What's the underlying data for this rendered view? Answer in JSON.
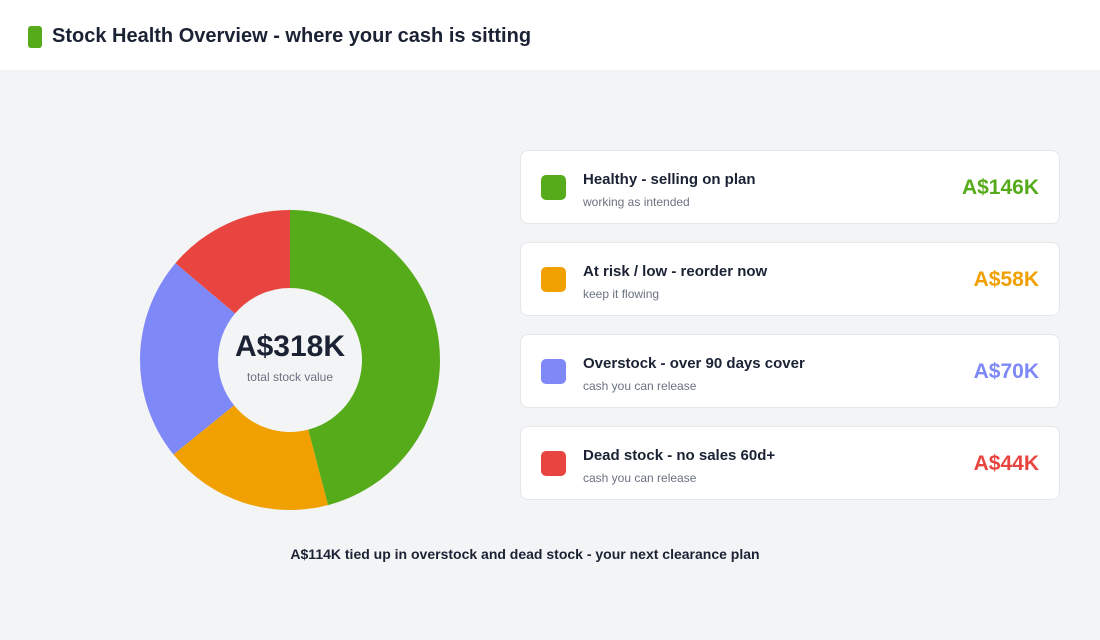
{
  "chart_data": {
    "type": "donut",
    "title": "Stock Health Overview - where your cash is sitting",
    "categories": [
      "Healthy - selling on plan",
      "At risk / low - reorder now",
      "Overstock - over 90 days cover",
      "Dead stock - no sales 60d+"
    ],
    "descriptions": [
      "working as intended",
      "keep it flowing",
      "cash you can release",
      "cash you can release"
    ],
    "values": [
      146000,
      58000,
      70000,
      44000
    ],
    "value_labels": [
      "A$146K",
      "A$58K",
      "A$70K",
      "A$44K"
    ],
    "colors": [
      "#56ab1a",
      "#f0a000",
      "#7f88f7",
      "#e84540"
    ],
    "center_value": "A$318K",
    "center_label": "total stock value",
    "annotation": "A$114K tied up in overstock and dead stock - your next clearance plan"
  }
}
